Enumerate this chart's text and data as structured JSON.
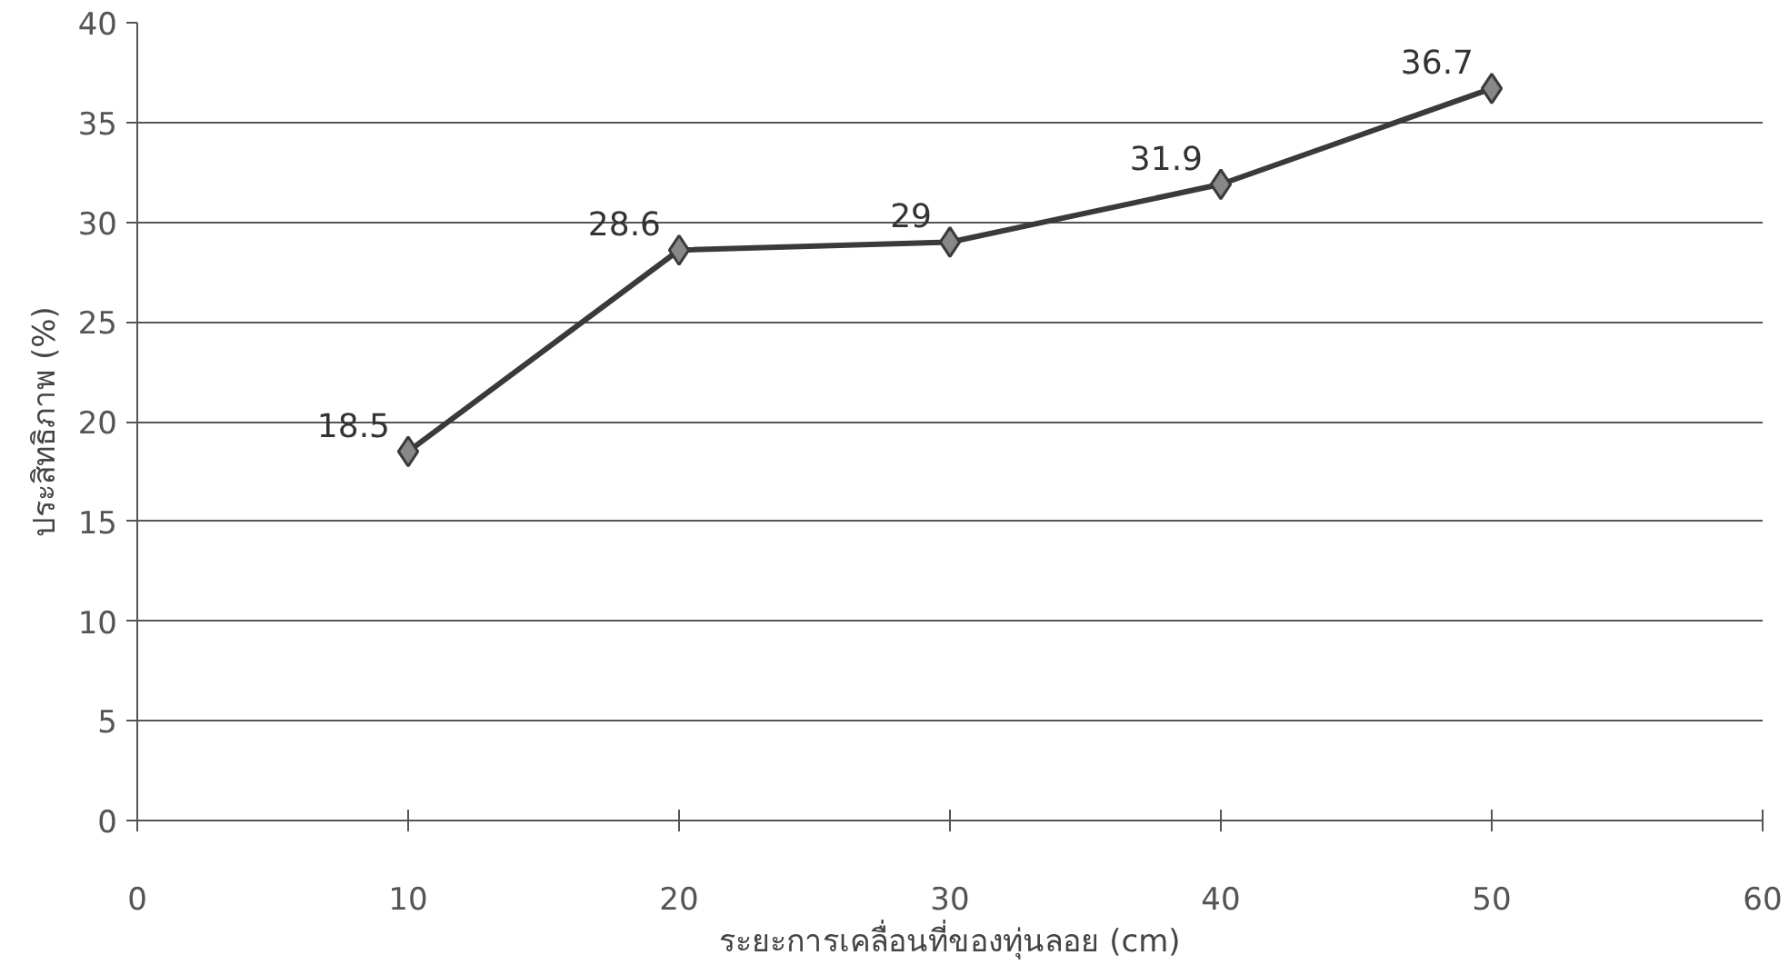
{
  "chart_data": {
    "type": "line",
    "xlabel": "ระยะการเคลื่อนที่ของทุ่นลอย (cm)",
    "ylabel": "ประสิทธิภาพ (%)",
    "x": [
      10,
      20,
      30,
      40,
      50
    ],
    "series": [
      {
        "color": "#3a3a3a",
        "values": [
          18.5,
          28.6,
          29,
          31.9,
          36.7
        ]
      }
    ],
    "xlim": [
      0,
      60
    ],
    "xticks": [
      0,
      10,
      20,
      30,
      40,
      50,
      60
    ],
    "ylim": [
      0,
      40
    ],
    "yticks": [
      0,
      5,
      10,
      15,
      20,
      25,
      30,
      35,
      40
    ],
    "grid": "y",
    "marker": "diamond",
    "line_style": "solid",
    "data_labels": true
  }
}
